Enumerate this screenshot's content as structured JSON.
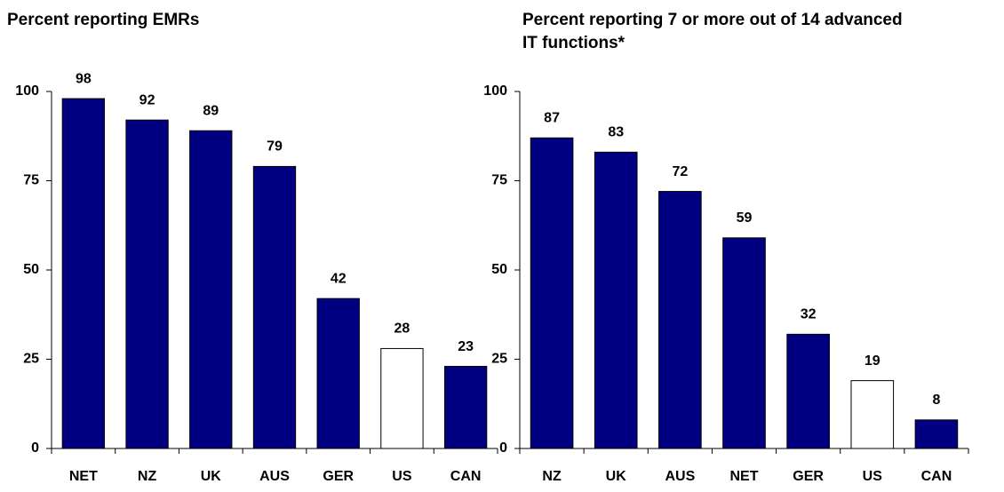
{
  "chart_data": [
    {
      "type": "bar",
      "title": "Percent reporting EMRs",
      "categories": [
        "NET",
        "NZ",
        "UK",
        "AUS",
        "GER",
        "US",
        "CAN"
      ],
      "values": [
        98,
        92,
        89,
        79,
        42,
        28,
        23
      ],
      "colors": [
        "#000080",
        "#000080",
        "#000080",
        "#000080",
        "#000080",
        "#ffffff",
        "#000080"
      ],
      "ylim": [
        0,
        100
      ],
      "yticks": [
        0,
        25,
        50,
        75,
        100
      ],
      "grid": false
    },
    {
      "type": "bar",
      "title": "Percent reporting 7 or more out of 14 advanced IT functions*",
      "categories": [
        "NZ",
        "UK",
        "AUS",
        "NET",
        "GER",
        "US",
        "CAN"
      ],
      "values": [
        87,
        83,
        72,
        59,
        32,
        19,
        8
      ],
      "colors": [
        "#000080",
        "#000080",
        "#000080",
        "#000080",
        "#000080",
        "#ffffff",
        "#000080"
      ],
      "ylim": [
        0,
        100
      ],
      "yticks": [
        0,
        25,
        50,
        75,
        100
      ],
      "grid": false
    }
  ]
}
